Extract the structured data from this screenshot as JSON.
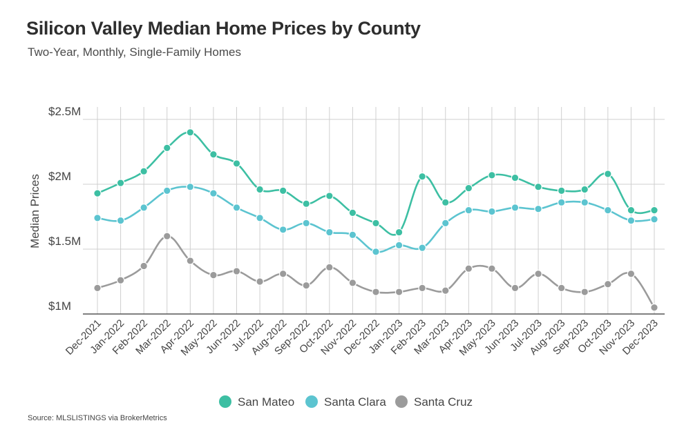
{
  "title": "Silicon Valley Median Home Prices by County",
  "subtitle": "Two-Year, Monthly, Single-Family Homes",
  "source": "Source:  MLSLISTINGS via BrokerMetrics",
  "colors": {
    "san_mateo": "#3dbfa3",
    "santa_clara": "#5cc4d0",
    "santa_cruz": "#9b9b9b",
    "grid": "#cfcfcf",
    "axis": "#555555"
  },
  "chart_data": {
    "type": "line",
    "title": "Silicon Valley Median Home Prices by County",
    "subtitle": "Two-Year, Monthly, Single-Family Homes",
    "xlabel": "",
    "ylabel": "Median Prices",
    "ylim": [
      1000000,
      2500000
    ],
    "yticks": [
      1000000,
      1500000,
      2000000,
      2500000
    ],
    "ytick_labels": [
      "$1M",
      "$1.5M",
      "$2M",
      "$2.5M"
    ],
    "grid": true,
    "legend_position": "bottom-center",
    "categories": [
      "Dec-2021",
      "Jan-2022",
      "Feb-2022",
      "Mar-2022",
      "Apr-2022",
      "May-2022",
      "Jun-2022",
      "Jul-2022",
      "Aug-2022",
      "Sep-2022",
      "Oct-2022",
      "Nov-2022",
      "Dec-2022",
      "Jan-2023",
      "Feb-2023",
      "Mar-2023",
      "Apr-2023",
      "May-2023",
      "Jun-2023",
      "Jul-2023",
      "Aug-2023",
      "Sep-2023",
      "Oct-2023",
      "Nov-2023",
      "Dec-2023"
    ],
    "series": [
      {
        "name": "San Mateo",
        "color": "#3dbfa3",
        "values": [
          1930000,
          2010000,
          2100000,
          2280000,
          2400000,
          2230000,
          2160000,
          1960000,
          1950000,
          1850000,
          1910000,
          1780000,
          1700000,
          1630000,
          2060000,
          1860000,
          1970000,
          2070000,
          2050000,
          1980000,
          1950000,
          1960000,
          2080000,
          1800000,
          1800000
        ]
      },
      {
        "name": "Santa Clara",
        "color": "#5cc4d0",
        "values": [
          1740000,
          1720000,
          1820000,
          1950000,
          1980000,
          1930000,
          1820000,
          1740000,
          1650000,
          1700000,
          1630000,
          1610000,
          1480000,
          1530000,
          1510000,
          1700000,
          1800000,
          1790000,
          1820000,
          1810000,
          1860000,
          1860000,
          1800000,
          1720000,
          1730000
        ]
      },
      {
        "name": "Santa Cruz",
        "color": "#9b9b9b",
        "values": [
          1200000,
          1260000,
          1370000,
          1600000,
          1410000,
          1300000,
          1330000,
          1250000,
          1310000,
          1220000,
          1360000,
          1240000,
          1170000,
          1170000,
          1200000,
          1180000,
          1350000,
          1350000,
          1200000,
          1310000,
          1200000,
          1170000,
          1230000,
          1310000,
          1050000
        ]
      }
    ]
  }
}
